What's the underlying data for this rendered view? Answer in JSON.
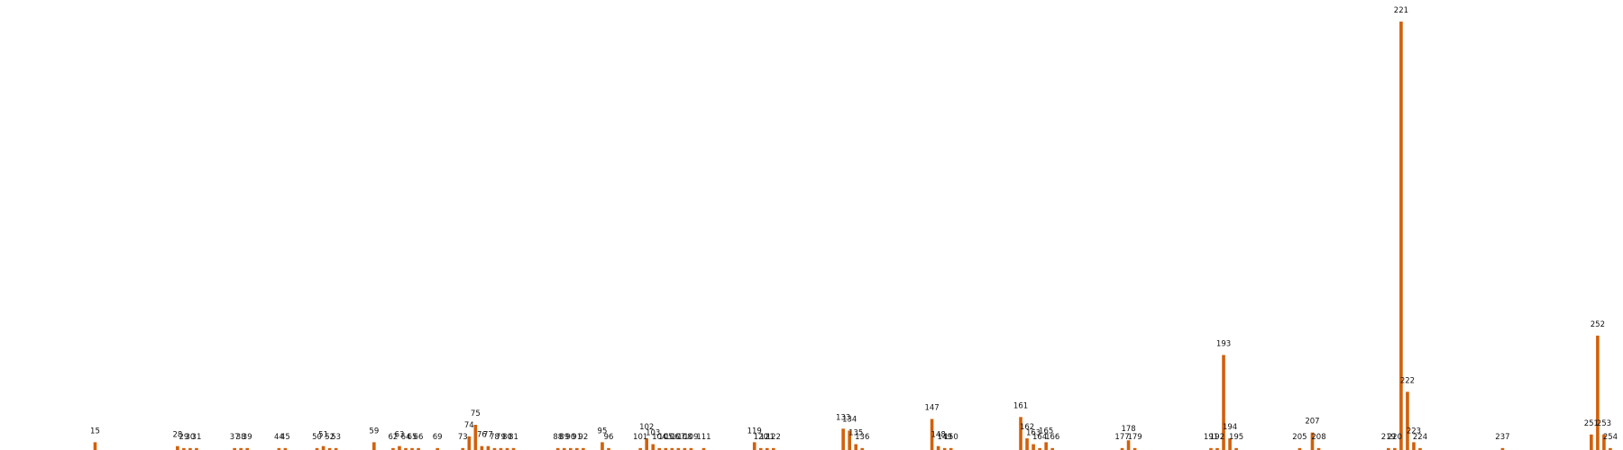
{
  "chart_data": {
    "type": "bar",
    "title": "",
    "xlabel": "",
    "ylabel": "",
    "bar_color": "#d2600a",
    "grid": false,
    "legend": "none",
    "xlim": [
      0,
      256
    ],
    "ylim": [
      0,
      221
    ],
    "categories": [
      15,
      28,
      29,
      30,
      31,
      37,
      38,
      39,
      44,
      45,
      50,
      51,
      52,
      53,
      59,
      62,
      63,
      64,
      65,
      66,
      69,
      73,
      74,
      75,
      76,
      77,
      78,
      79,
      80,
      81,
      88,
      89,
      90,
      91,
      92,
      95,
      96,
      101,
      102,
      103,
      104,
      105,
      106,
      107,
      108,
      109,
      111,
      119,
      120,
      121,
      122,
      133,
      134,
      135,
      136,
      147,
      148,
      149,
      150,
      161,
      162,
      163,
      164,
      165,
      166,
      177,
      178,
      179,
      191,
      192,
      193,
      194,
      195,
      205,
      207,
      208,
      219,
      220,
      221,
      222,
      223,
      224,
      237,
      251,
      252,
      253,
      254
    ],
    "values": [
      4,
      2,
      1,
      1,
      1,
      1,
      1,
      1,
      1,
      1,
      1,
      2,
      1,
      1,
      4,
      1,
      2,
      1,
      1,
      1,
      1,
      1,
      7,
      13,
      2,
      2,
      1,
      1,
      1,
      1,
      1,
      1,
      1,
      1,
      1,
      4,
      1,
      1,
      6,
      3,
      1,
      1,
      1,
      1,
      1,
      1,
      1,
      4,
      1,
      1,
      1,
      11,
      10,
      3,
      1,
      16,
      2,
      1,
      1,
      17,
      6,
      3,
      1,
      4,
      1,
      1,
      5,
      1,
      1,
      1,
      49,
      6,
      1,
      1,
      9,
      1,
      1,
      1,
      221,
      30,
      4,
      1,
      1,
      8,
      59,
      8,
      1
    ]
  }
}
